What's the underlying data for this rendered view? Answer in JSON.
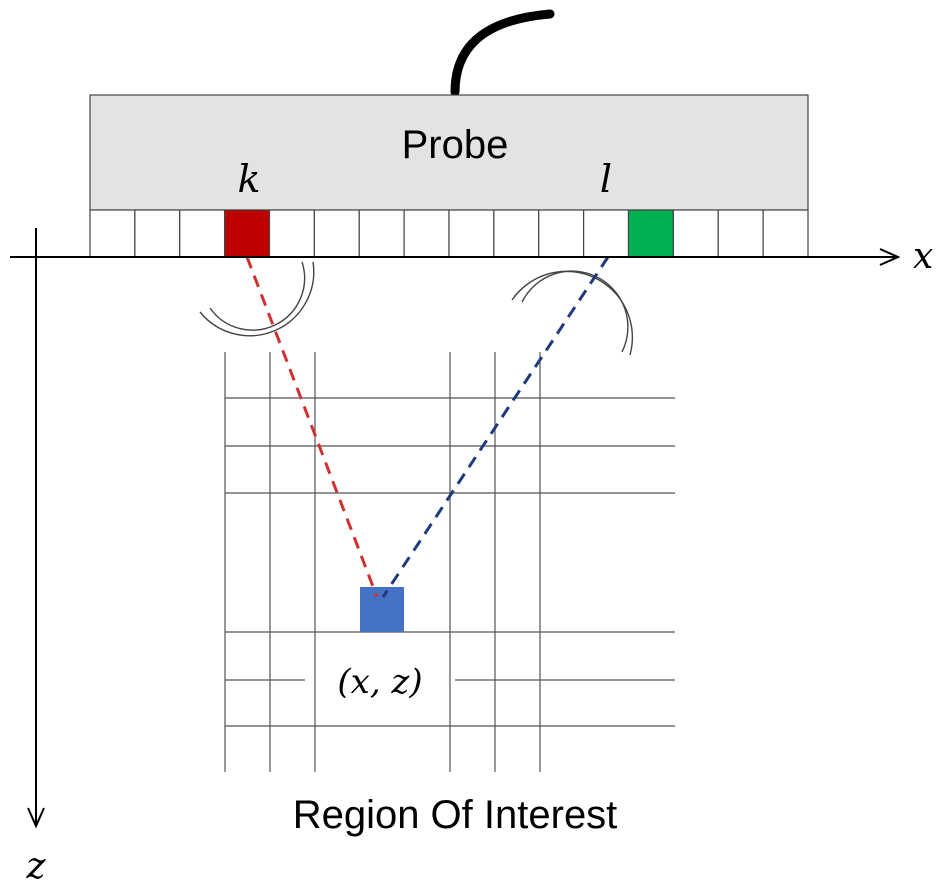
{
  "probe": {
    "label": "Probe",
    "element_count": 16,
    "transmit_index": 3,
    "receive_index": 12,
    "transmit_label": "k",
    "receive_label": "l"
  },
  "axes": {
    "x_label": "x",
    "z_label": "z"
  },
  "roi": {
    "label": "Region Of Interest",
    "point_label": "(x, z)"
  },
  "colors": {
    "probe_body": "#e3e3e3",
    "transmit": "#c00000",
    "receive": "#00b050",
    "pixel": "#4472c4",
    "transmit_path": "#d03030",
    "receive_path": "#1f3a7a"
  }
}
